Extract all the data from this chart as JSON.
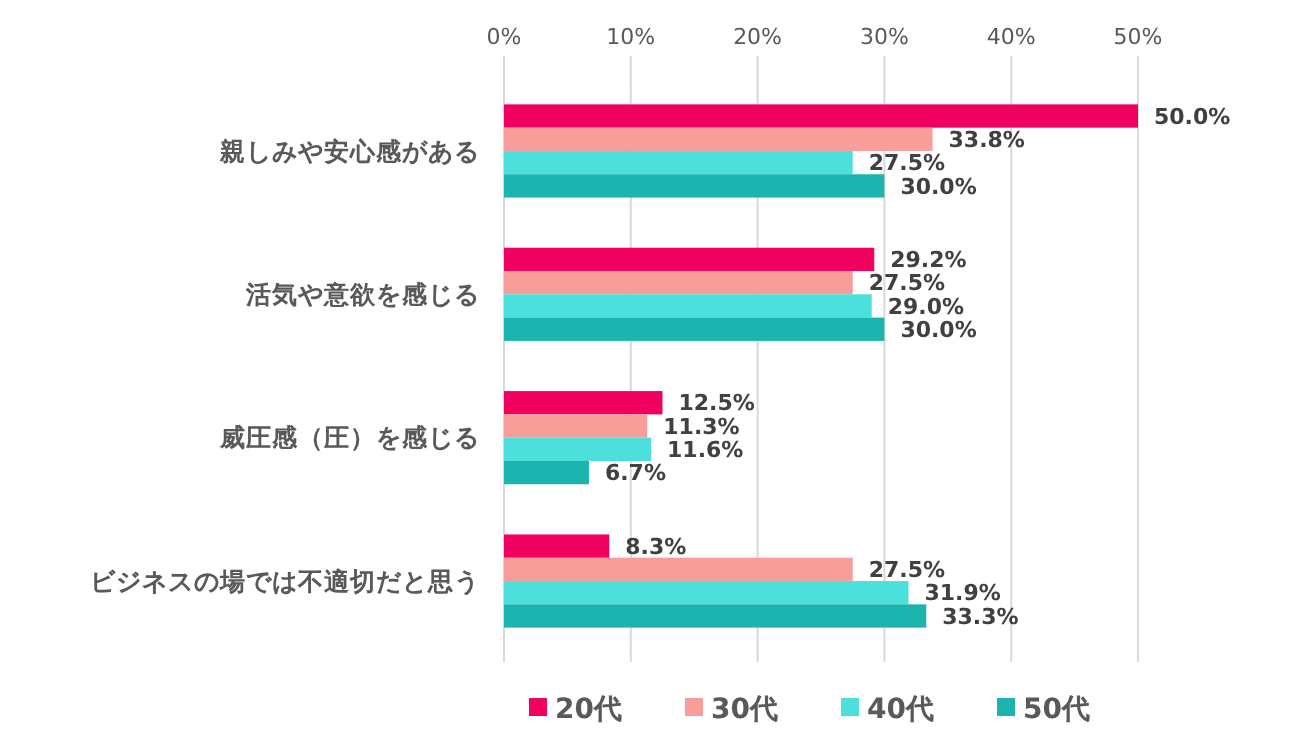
{
  "chart_data": {
    "type": "bar",
    "orientation": "horizontal",
    "categories": [
      "親しみや安心感がある",
      "活気や意欲を感じる",
      "威圧感（圧）を感じる",
      "ビジネスの場では不適切だと思う"
    ],
    "series": [
      {
        "name": "20代",
        "color": "#f0005f",
        "values": [
          50.0,
          29.2,
          12.5,
          8.3
        ],
        "value_labels": [
          "50.0%",
          "29.2%",
          "12.5%",
          "8.3%"
        ]
      },
      {
        "name": "30代",
        "color": "#f79d9a",
        "values": [
          33.8,
          27.5,
          11.3,
          27.5
        ],
        "value_labels": [
          "33.8%",
          "27.5%",
          "11.3%",
          "27.5%"
        ]
      },
      {
        "name": "40代",
        "color": "#4ce0dc",
        "values": [
          27.5,
          29.0,
          11.6,
          31.9
        ],
        "value_labels": [
          "27.5%",
          "29.0%",
          "11.6%",
          "31.9%"
        ]
      },
      {
        "name": "50代",
        "color": "#1db3ae",
        "values": [
          30.0,
          30.0,
          6.7,
          33.3
        ],
        "value_labels": [
          "30.0%",
          "30.0%",
          "6.7%",
          "33.3%"
        ]
      }
    ],
    "xlim": [
      0,
      50
    ],
    "xticks": [
      {
        "value": 0,
        "label": "0%"
      },
      {
        "value": 10,
        "label": "10%"
      },
      {
        "value": 20,
        "label": "20%"
      },
      {
        "value": 30,
        "label": "30%"
      },
      {
        "value": 40,
        "label": "40%"
      },
      {
        "value": 50,
        "label": "50%"
      }
    ],
    "grid": "x",
    "legend": "bottom"
  }
}
